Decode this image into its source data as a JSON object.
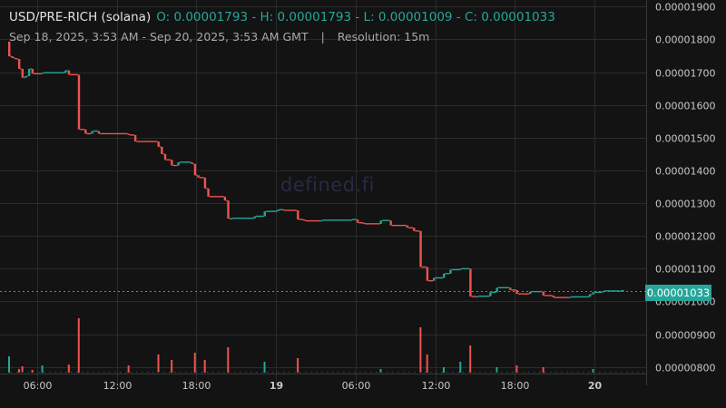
{
  "header": {
    "symbol": "USD/PRE-RICH (solana)",
    "ohlc": "O: 0.00001793 - H: 0.00001793 - L: 0.00001009 - C: 0.00001033",
    "range": "Sep 18, 2025, 3:53 AM - Sep 20, 2025, 3:53 AM GMT",
    "separator": "|",
    "resolution": "Resolution: 15m"
  },
  "watermark": "defined.fi",
  "last_price_label": "0.00001033",
  "colors": {
    "background": "#131313",
    "up": "#26a69a",
    "down": "#ef5350",
    "grid": "#2b2b2b",
    "axis_text": "#c8c8c8"
  },
  "chart_data": {
    "type": "candlestick",
    "title": "USD/PRE-RICH (solana)",
    "resolution": "15m",
    "y_axis": {
      "position": "right",
      "ylim": [
        7.8e-06,
        1.92e-05
      ],
      "ticks": [
        "0.00001900",
        "0.00001800",
        "0.00001700",
        "0.00001600",
        "0.00001500",
        "0.00001400",
        "0.00001300",
        "0.00001200",
        "0.00001100",
        "0.00001000",
        "0.00000900",
        "0.00000800"
      ]
    },
    "x_axis": {
      "start": "2025-09-18 03:53",
      "end": "2025-09-20 03:53",
      "ticks": [
        {
          "time": "2025-09-18 06:00",
          "label": "06:00",
          "bold": false
        },
        {
          "time": "2025-09-18 12:00",
          "label": "12:00",
          "bold": false
        },
        {
          "time": "2025-09-18 18:00",
          "label": "18:00",
          "bold": false
        },
        {
          "time": "2025-09-19 00:00",
          "label": "19",
          "bold": true
        },
        {
          "time": "2025-09-19 06:00",
          "label": "06:00",
          "bold": false
        },
        {
          "time": "2025-09-19 12:00",
          "label": "12:00",
          "bold": false
        },
        {
          "time": "2025-09-19 18:00",
          "label": "18:00",
          "bold": false
        },
        {
          "time": "2025-09-20 00:00",
          "label": "20",
          "bold": true
        }
      ]
    },
    "last_price": 1.033e-05,
    "series": [
      {
        "time": "2025-09-18 03:53",
        "o": 1.793e-05,
        "h": 1.793e-05,
        "l": 1.745e-05,
        "c": 1.748e-05
      },
      {
        "time": "2025-09-18 04:08",
        "o": 1.748e-05,
        "h": 1.75e-05,
        "l": 1.74e-05,
        "c": 1.743e-05
      },
      {
        "time": "2025-09-18 04:23",
        "o": 1.743e-05,
        "h": 1.745e-05,
        "l": 1.737e-05,
        "c": 1.74e-05
      },
      {
        "time": "2025-09-18 04:38",
        "o": 1.74e-05,
        "h": 1.741e-05,
        "l": 1.708e-05,
        "c": 1.71e-05
      },
      {
        "time": "2025-09-18 04:53",
        "o": 1.71e-05,
        "h": 1.712e-05,
        "l": 1.68e-05,
        "c": 1.683e-05
      },
      {
        "time": "2025-09-18 05:08",
        "o": 1.683e-05,
        "h": 1.69e-05,
        "l": 1.678e-05,
        "c": 1.688e-05
      },
      {
        "time": "2025-09-18 05:23",
        "o": 1.688e-05,
        "h": 1.713e-05,
        "l": 1.685e-05,
        "c": 1.71e-05
      },
      {
        "time": "2025-09-18 05:38",
        "o": 1.71e-05,
        "h": 1.712e-05,
        "l": 1.693e-05,
        "c": 1.695e-05
      },
      {
        "time": "2025-09-18 06:23",
        "o": 1.695e-05,
        "h": 1.702e-05,
        "l": 1.693e-05,
        "c": 1.698e-05
      },
      {
        "time": "2025-09-18 08:08",
        "o": 1.698e-05,
        "h": 1.71e-05,
        "l": 1.695e-05,
        "c": 1.705e-05
      },
      {
        "time": "2025-09-18 08:23",
        "o": 1.705e-05,
        "h": 1.706e-05,
        "l": 1.69e-05,
        "c": 1.692e-05
      },
      {
        "time": "2025-09-18 09:08",
        "o": 1.692e-05,
        "h": 1.693e-05,
        "l": 1.51e-05,
        "c": 1.525e-05
      },
      {
        "time": "2025-09-18 09:38",
        "o": 1.525e-05,
        "h": 1.528e-05,
        "l": 1.51e-05,
        "c": 1.512e-05
      },
      {
        "time": "2025-09-18 10:08",
        "o": 1.512e-05,
        "h": 1.525e-05,
        "l": 1.508e-05,
        "c": 1.52e-05
      },
      {
        "time": "2025-09-18 10:38",
        "o": 1.52e-05,
        "h": 1.522e-05,
        "l": 1.51e-05,
        "c": 1.512e-05
      },
      {
        "time": "2025-09-18 12:53",
        "o": 1.512e-05,
        "h": 1.513e-05,
        "l": 1.505e-05,
        "c": 1.508e-05
      },
      {
        "time": "2025-09-18 13:23",
        "o": 1.508e-05,
        "h": 1.51e-05,
        "l": 1.485e-05,
        "c": 1.488e-05
      },
      {
        "time": "2025-09-18 15:08",
        "o": 1.488e-05,
        "h": 1.49e-05,
        "l": 1.47e-05,
        "c": 1.472e-05
      },
      {
        "time": "2025-09-18 15:23",
        "o": 1.472e-05,
        "h": 1.475e-05,
        "l": 1.448e-05,
        "c": 1.45e-05
      },
      {
        "time": "2025-09-18 15:38",
        "o": 1.45e-05,
        "h": 1.452e-05,
        "l": 1.428e-05,
        "c": 1.432e-05
      },
      {
        "time": "2025-09-18 16:08",
        "o": 1.432e-05,
        "h": 1.434e-05,
        "l": 1.41e-05,
        "c": 1.415e-05
      },
      {
        "time": "2025-09-18 16:38",
        "o": 1.415e-05,
        "h": 1.43e-05,
        "l": 1.412e-05,
        "c": 1.425e-05
      },
      {
        "time": "2025-09-18 17:38",
        "o": 1.425e-05,
        "h": 1.427e-05,
        "l": 1.418e-05,
        "c": 1.42e-05
      },
      {
        "time": "2025-09-18 17:53",
        "o": 1.42e-05,
        "h": 1.421e-05,
        "l": 1.38e-05,
        "c": 1.385e-05
      },
      {
        "time": "2025-09-18 18:08",
        "o": 1.385e-05,
        "h": 1.387e-05,
        "l": 1.375e-05,
        "c": 1.378e-05
      },
      {
        "time": "2025-09-18 18:38",
        "o": 1.378e-05,
        "h": 1.38e-05,
        "l": 1.34e-05,
        "c": 1.345e-05
      },
      {
        "time": "2025-09-18 18:53",
        "o": 1.345e-05,
        "h": 1.347e-05,
        "l": 1.315e-05,
        "c": 1.32e-05
      },
      {
        "time": "2025-09-18 20:08",
        "o": 1.32e-05,
        "h": 1.322e-05,
        "l": 1.305e-05,
        "c": 1.308e-05
      },
      {
        "time": "2025-09-18 20:23",
        "o": 1.308e-05,
        "h": 1.309e-05,
        "l": 1.25e-05,
        "c": 1.253e-05
      },
      {
        "time": "2025-09-18 20:38",
        "o": 1.253e-05,
        "h": 1.256e-05,
        "l": 1.25e-05,
        "c": 1.254e-05
      },
      {
        "time": "2025-09-18 22:23",
        "o": 1.254e-05,
        "h": 1.262e-05,
        "l": 1.252e-05,
        "c": 1.26e-05
      },
      {
        "time": "2025-09-18 23:08",
        "o": 1.26e-05,
        "h": 1.278e-05,
        "l": 1.258e-05,
        "c": 1.275e-05
      },
      {
        "time": "2025-09-19 00:08",
        "o": 1.275e-05,
        "h": 1.283e-05,
        "l": 1.273e-05,
        "c": 1.28e-05
      },
      {
        "time": "2025-09-19 00:38",
        "o": 1.28e-05,
        "h": 1.283e-05,
        "l": 1.276e-05,
        "c": 1.278e-05
      },
      {
        "time": "2025-09-19 01:38",
        "o": 1.278e-05,
        "h": 1.279e-05,
        "l": 1.248e-05,
        "c": 1.25e-05
      },
      {
        "time": "2025-09-19 02:08",
        "o": 1.25e-05,
        "h": 1.252e-05,
        "l": 1.244e-05,
        "c": 1.246e-05
      },
      {
        "time": "2025-09-19 03:23",
        "o": 1.246e-05,
        "h": 1.25e-05,
        "l": 1.244e-05,
        "c": 1.248e-05
      },
      {
        "time": "2025-09-19 05:38",
        "o": 1.248e-05,
        "h": 1.252e-05,
        "l": 1.246e-05,
        "c": 1.25e-05
      },
      {
        "time": "2025-09-19 06:08",
        "o": 1.25e-05,
        "h": 1.251e-05,
        "l": 1.236e-05,
        "c": 1.24e-05
      },
      {
        "time": "2025-09-19 06:38",
        "o": 1.24e-05,
        "h": 1.242e-05,
        "l": 1.234e-05,
        "c": 1.237e-05
      },
      {
        "time": "2025-09-19 07:53",
        "o": 1.237e-05,
        "h": 1.25e-05,
        "l": 1.235e-05,
        "c": 1.247e-05
      },
      {
        "time": "2025-09-19 08:38",
        "o": 1.247e-05,
        "h": 1.249e-05,
        "l": 1.23e-05,
        "c": 1.232e-05
      },
      {
        "time": "2025-09-19 09:53",
        "o": 1.232e-05,
        "h": 1.234e-05,
        "l": 1.222e-05,
        "c": 1.225e-05
      },
      {
        "time": "2025-09-19 10:23",
        "o": 1.225e-05,
        "h": 1.227e-05,
        "l": 1.21e-05,
        "c": 1.215e-05
      },
      {
        "time": "2025-09-19 10:53",
        "o": 1.215e-05,
        "h": 1.216e-05,
        "l": 1.1e-05,
        "c": 1.105e-05
      },
      {
        "time": "2025-09-19 11:23",
        "o": 1.105e-05,
        "h": 1.106e-05,
        "l": 1.06e-05,
        "c": 1.063e-05
      },
      {
        "time": "2025-09-19 11:53",
        "o": 1.063e-05,
        "h": 1.075e-05,
        "l": 1.06e-05,
        "c": 1.072e-05
      },
      {
        "time": "2025-09-19 12:38",
        "o": 1.072e-05,
        "h": 1.088e-05,
        "l": 1.07e-05,
        "c": 1.085e-05
      },
      {
        "time": "2025-09-19 13:08",
        "o": 1.085e-05,
        "h": 1.1e-05,
        "l": 1.083e-05,
        "c": 1.097e-05
      },
      {
        "time": "2025-09-19 13:53",
        "o": 1.097e-05,
        "h": 1.103e-05,
        "l": 1.094e-05,
        "c": 1.1e-05
      },
      {
        "time": "2025-09-19 14:38",
        "o": 1.1e-05,
        "h": 1.101e-05,
        "l": 1.012e-05,
        "c": 1.015e-05
      },
      {
        "time": "2025-09-19 15:08",
        "o": 1.015e-05,
        "h": 1.018e-05,
        "l": 1.012e-05,
        "c": 1.016e-05
      },
      {
        "time": "2025-09-19 16:08",
        "o": 1.016e-05,
        "h": 1.03e-05,
        "l": 1.014e-05,
        "c": 1.028e-05
      },
      {
        "time": "2025-09-19 16:38",
        "o": 1.028e-05,
        "h": 1.045e-05,
        "l": 1.026e-05,
        "c": 1.042e-05
      },
      {
        "time": "2025-09-19 17:38",
        "o": 1.042e-05,
        "h": 1.044e-05,
        "l": 1.032e-05,
        "c": 1.035e-05
      },
      {
        "time": "2025-09-19 18:08",
        "o": 1.035e-05,
        "h": 1.036e-05,
        "l": 1.02e-05,
        "c": 1.023e-05
      },
      {
        "time": "2025-09-19 19:08",
        "o": 1.023e-05,
        "h": 1.032e-05,
        "l": 1.021e-05,
        "c": 1.03e-05
      },
      {
        "time": "2025-09-19 20:08",
        "o": 1.03e-05,
        "h": 1.031e-05,
        "l": 1.016e-05,
        "c": 1.018e-05
      },
      {
        "time": "2025-09-19 20:53",
        "o": 1.018e-05,
        "h": 1.019e-05,
        "l": 1.009e-05,
        "c": 1.012e-05
      },
      {
        "time": "2025-09-19 22:08",
        "o": 1.012e-05,
        "h": 1.016e-05,
        "l": 1.01e-05,
        "c": 1.014e-05
      },
      {
        "time": "2025-09-19 23:38",
        "o": 1.014e-05,
        "h": 1.025e-05,
        "l": 1.012e-05,
        "c": 1.022e-05
      },
      {
        "time": "2025-09-19 23:53",
        "o": 1.022e-05,
        "h": 1.03e-05,
        "l": 1.02e-05,
        "c": 1.028e-05
      },
      {
        "time": "2025-09-20 00:38",
        "o": 1.028e-05,
        "h": 1.034e-05,
        "l": 1.026e-05,
        "c": 1.032e-05
      },
      {
        "time": "2025-09-20 01:53",
        "o": 1.032e-05,
        "h": 1.035e-05,
        "l": 1.031e-05,
        "c": 1.033e-05
      }
    ],
    "volume": [
      {
        "time": "2025-09-18 03:53",
        "v": 18,
        "up": true
      },
      {
        "time": "2025-09-18 04:38",
        "v": 4,
        "up": false
      },
      {
        "time": "2025-09-18 04:53",
        "v": 7,
        "up": false
      },
      {
        "time": "2025-09-18 05:38",
        "v": 3,
        "up": false
      },
      {
        "time": "2025-09-18 06:23",
        "v": 8,
        "up": true
      },
      {
        "time": "2025-09-18 08:23",
        "v": 9,
        "up": false
      },
      {
        "time": "2025-09-18 09:08",
        "v": 60,
        "up": false
      },
      {
        "time": "2025-09-18 12:53",
        "v": 8,
        "up": false
      },
      {
        "time": "2025-09-18 15:08",
        "v": 20,
        "up": false
      },
      {
        "time": "2025-09-18 16:08",
        "v": 14,
        "up": false
      },
      {
        "time": "2025-09-18 17:53",
        "v": 22,
        "up": false
      },
      {
        "time": "2025-09-18 18:38",
        "v": 14,
        "up": false
      },
      {
        "time": "2025-09-18 20:23",
        "v": 28,
        "up": false
      },
      {
        "time": "2025-09-18 23:08",
        "v": 12,
        "up": true
      },
      {
        "time": "2025-09-19 01:38",
        "v": 16,
        "up": false
      },
      {
        "time": "2025-09-19 07:53",
        "v": 4,
        "up": true
      },
      {
        "time": "2025-09-19 10:53",
        "v": 50,
        "up": false
      },
      {
        "time": "2025-09-19 11:23",
        "v": 20,
        "up": false
      },
      {
        "time": "2025-09-19 12:38",
        "v": 6,
        "up": true
      },
      {
        "time": "2025-09-19 13:53",
        "v": 12,
        "up": true
      },
      {
        "time": "2025-09-19 14:38",
        "v": 30,
        "up": false
      },
      {
        "time": "2025-09-19 16:38",
        "v": 6,
        "up": true
      },
      {
        "time": "2025-09-19 18:08",
        "v": 8,
        "up": false
      },
      {
        "time": "2025-09-19 20:08",
        "v": 6,
        "up": false
      },
      {
        "time": "2025-09-19 23:53",
        "v": 4,
        "up": true
      }
    ]
  }
}
